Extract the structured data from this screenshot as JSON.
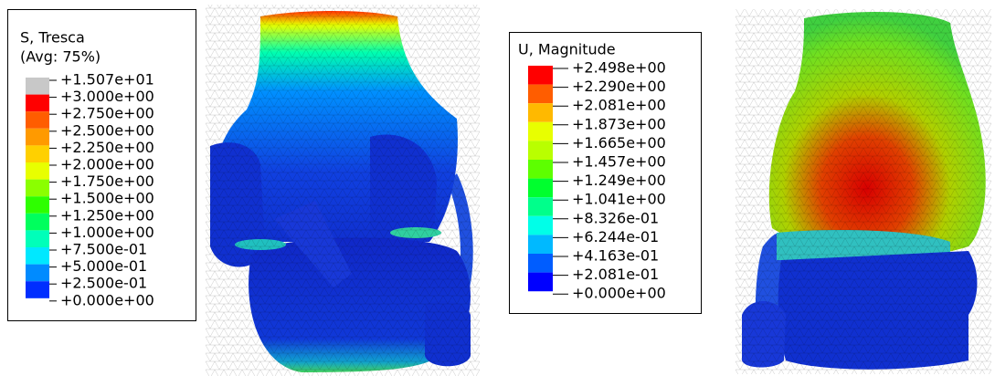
{
  "legends": [
    {
      "title": [
        "S, Tresca",
        "(Avg: 75%)"
      ],
      "labels": [
        "+1.507e+01",
        "+3.000e+00",
        "+2.750e+00",
        "+2.500e+00",
        "+2.250e+00",
        "+2.000e+00",
        "+1.750e+00",
        "+1.500e+00",
        "+1.250e+00",
        "+1.000e+00",
        "+7.500e-01",
        "+5.000e-01",
        "+2.500e-01",
        "+0.000e+00"
      ],
      "colors": [
        "#c8c8c8",
        "#ff0000",
        "#ff5d00",
        "#ff9a00",
        "#ffd000",
        "#e8ff00",
        "#8bff00",
        "#2eff00",
        "#00ff5d",
        "#00ffb9",
        "#00e8ff",
        "#008bff",
        "#002eff"
      ]
    },
    {
      "title": [
        "U, Magnitude"
      ],
      "labels": [
        "+2.498e+00",
        "+2.290e+00",
        "+2.081e+00",
        "+1.873e+00",
        "+1.665e+00",
        "+1.457e+00",
        "+1.249e+00",
        "+1.041e+00",
        "+8.326e-01",
        "+6.244e-01",
        "+4.163e-01",
        "+2.081e-01",
        "+0.000e+00"
      ],
      "colors": [
        "#ff0000",
        "#ff5d00",
        "#ffb900",
        "#e8ff00",
        "#b9ff00",
        "#5dff00",
        "#00ff2e",
        "#00ff8b",
        "#00ffe8",
        "#00b9ff",
        "#005dff",
        "#0000ff"
      ]
    }
  ]
}
